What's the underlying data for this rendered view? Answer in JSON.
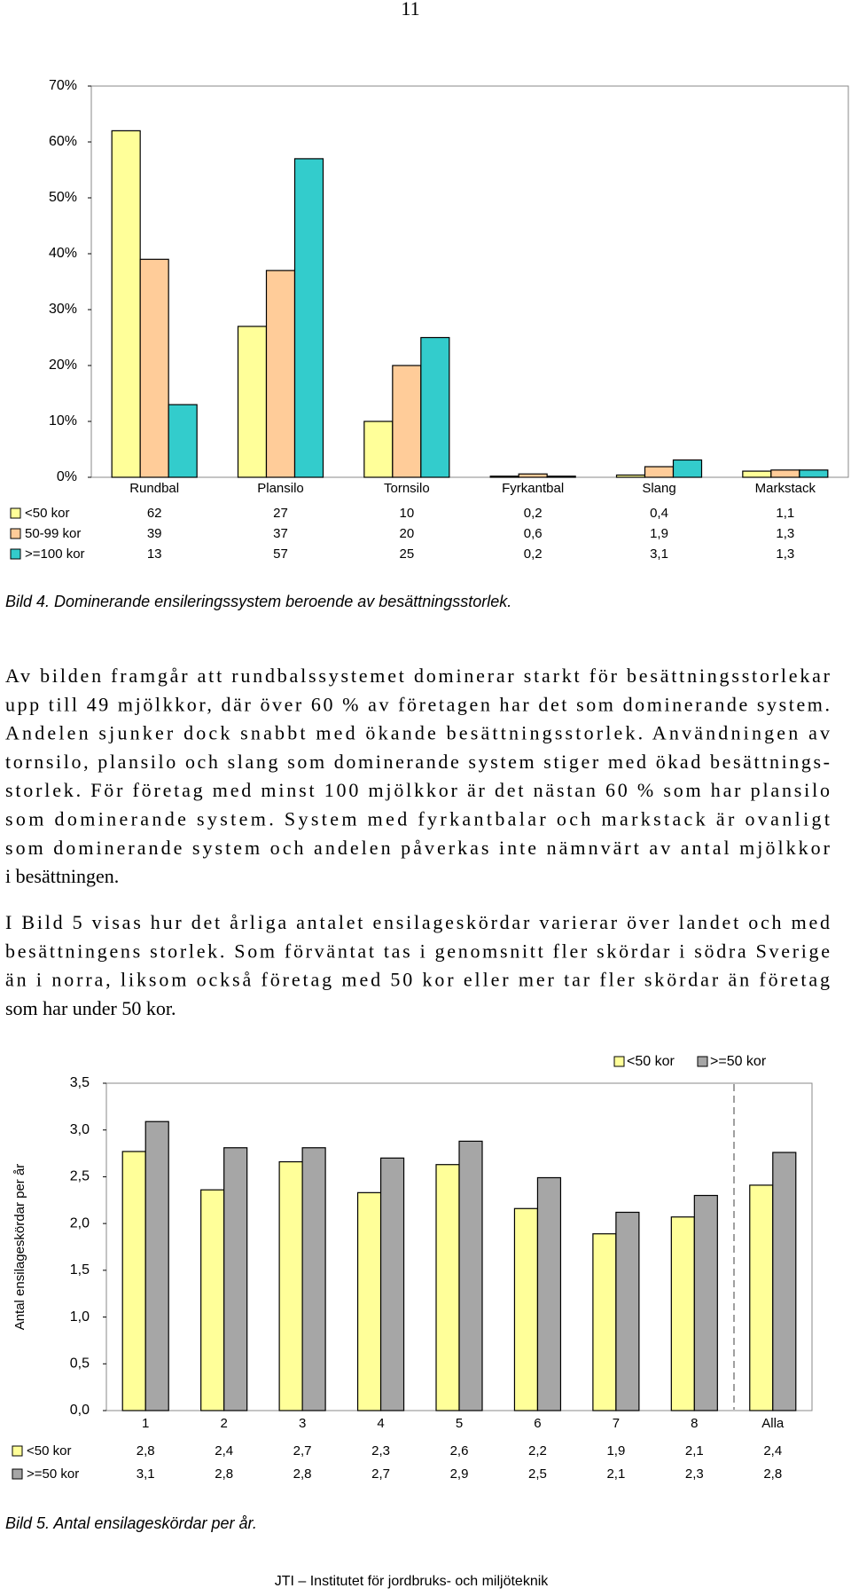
{
  "page_number": "11",
  "chart_data": [
    {
      "type": "bar",
      "categories": [
        "Rundbal",
        "Plansilo",
        "Tornsilo",
        "Fyrkantbal",
        "Slang",
        "Markstack"
      ],
      "series": [
        {
          "name": "<50 kor",
          "color": "#ffff99",
          "values": [
            62,
            27,
            10,
            0.2,
            0.4,
            1.1
          ],
          "value_labels": [
            "62",
            "27",
            "10",
            "0,2",
            "0,4",
            "1,1"
          ]
        },
        {
          "name": "50-99 kor",
          "color": "#ffcc99",
          "values": [
            39,
            37,
            20,
            0.6,
            1.9,
            1.3
          ],
          "value_labels": [
            "39",
            "37",
            "20",
            "0,6",
            "1,9",
            "1,3"
          ]
        },
        {
          "name": ">=100 kor",
          "color": "#33cccc",
          "values": [
            13,
            57,
            25,
            0.2,
            3.1,
            1.3
          ],
          "value_labels": [
            "13",
            "57",
            "25",
            "0,2",
            "3,1",
            "1,3"
          ]
        }
      ],
      "ylim": [
        0,
        70
      ],
      "yticks": [
        {
          "value": 0,
          "label": "0%"
        },
        {
          "value": 10,
          "label": "10%"
        },
        {
          "value": 20,
          "label": "20%"
        },
        {
          "value": 30,
          "label": "30%"
        },
        {
          "value": 40,
          "label": "40%"
        },
        {
          "value": 50,
          "label": "50%"
        },
        {
          "value": 60,
          "label": "60%"
        },
        {
          "value": 70,
          "label": "70%"
        }
      ],
      "grid": false,
      "data_table": true
    },
    {
      "type": "bar",
      "y_label": "Antal ensilageskördar per år",
      "categories": [
        "1",
        "2",
        "3",
        "4",
        "5",
        "6",
        "7",
        "8",
        "Alla"
      ],
      "series": [
        {
          "name": "<50 kor",
          "color": "#ffff99",
          "values": [
            2.77,
            2.36,
            2.66,
            2.33,
            2.63,
            2.16,
            1.89,
            2.07,
            2.41
          ],
          "value_labels": [
            "2,8",
            "2,4",
            "2,7",
            "2,3",
            "2,6",
            "2,2",
            "1,9",
            "2,1",
            "2,4"
          ]
        },
        {
          "name": ">=50 kor",
          "color": "#a6a6a6",
          "values": [
            3.09,
            2.81,
            2.81,
            2.7,
            2.88,
            2.49,
            2.12,
            2.3,
            2.76
          ],
          "value_labels": [
            "3,1",
            "2,8",
            "2,8",
            "2,7",
            "2,9",
            "2,5",
            "2,1",
            "2,3",
            "2,8"
          ]
        }
      ],
      "ylim": [
        0,
        3.5
      ],
      "yticks": [
        {
          "value": 0,
          "label": "0,0"
        },
        {
          "value": 0.5,
          "label": "0,5"
        },
        {
          "value": 1,
          "label": "1,0"
        },
        {
          "value": 1.5,
          "label": "1,5"
        },
        {
          "value": 2,
          "label": "2,0"
        },
        {
          "value": 2.5,
          "label": "2,5"
        },
        {
          "value": 3,
          "label": "3,0"
        },
        {
          "value": 3.5,
          "label": "3,5"
        }
      ],
      "grid": false,
      "data_table": true,
      "legend": "top-right"
    }
  ],
  "captions": [
    "Bild 4. Dominerande ensileringssystem beroende av besättningsstorlek.",
    "Bild 5. Antal ensilageskördar per år."
  ],
  "paragraphs": [
    [
      "Av bilden framgår att rundbalssystemet dominerar starkt för besättningsstorlekar",
      "upp till 49 mjölkkor, där över 60 % av företagen har det som dominerande system.",
      "Andelen sjunker dock snabbt med ökande besättningsstorlek. Användningen av",
      "tornsilo, plansilo och slang som dominerande system stiger med ökad besättnings-",
      "storlek. För företag med minst 100 mjölkkor är det nästan 60 % som har plansilo",
      "som dominerande system. System med fyrkantbalar och markstack är ovanligt",
      "som dominerande system och andelen påverkas inte nämnvärt av antal mjölkkor",
      "i besättningen."
    ],
    [
      "I Bild 5 visas hur det årliga antalet ensilageskördar varierar över landet och med",
      "besättningens storlek. Som förväntat tas i genomsnitt fler skördar i södra Sverige",
      "än i norra, liksom också företag med 50 kor eller mer tar fler skördar än företag",
      "som har under 50 kor."
    ]
  ],
  "footer": "JTI – Institutet för jordbruks- och miljöteknik"
}
